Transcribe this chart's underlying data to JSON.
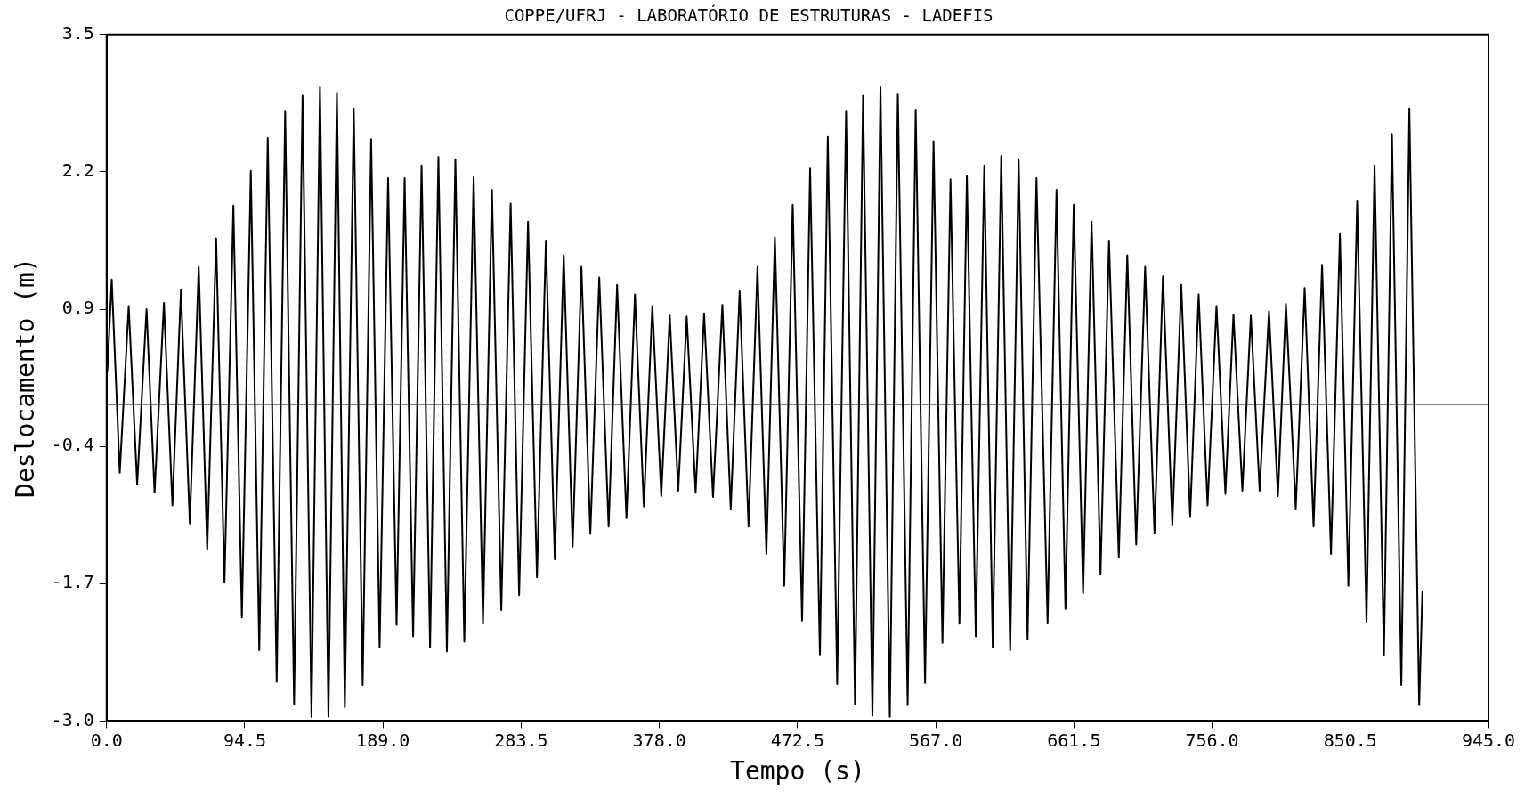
{
  "chart_data": {
    "type": "line",
    "title": "COPPE/UFRJ - LABORATÓRIO DE ESTRUTURAS - LADEFIS",
    "xlabel": "Tempo (s)",
    "ylabel": "Deslocamento (m)",
    "xlim": [
      0,
      945
    ],
    "ylim": [
      -3.0,
      3.5
    ],
    "xticks": [
      {
        "value": 0,
        "label": "0.0"
      },
      {
        "value": 94.5,
        "label": "94.5"
      },
      {
        "value": 189,
        "label": "189.0"
      },
      {
        "value": 283.5,
        "label": "283.5"
      },
      {
        "value": 378,
        "label": "378.0"
      },
      {
        "value": 472.5,
        "label": "472.5"
      },
      {
        "value": 567,
        "label": "567.0"
      },
      {
        "value": 661.5,
        "label": "661.5"
      },
      {
        "value": 756,
        "label": "756.0"
      },
      {
        "value": 850.5,
        "label": "850.5"
      },
      {
        "value": 945,
        "label": "945.0"
      }
    ],
    "yticks": [
      {
        "value": -3.0,
        "label": "-3.0"
      },
      {
        "value": -1.7,
        "label": "-1.7"
      },
      {
        "value": -0.4,
        "label": "-0.4"
      },
      {
        "value": 0.9,
        "label": "0.9"
      },
      {
        "value": 2.2,
        "label": "2.2"
      },
      {
        "value": 3.5,
        "label": "3.5"
      }
    ],
    "marker": "none",
    "line_style": "solid",
    "ref_lines": [
      {
        "axis": "y",
        "value": 0,
        "color": "#000000"
      }
    ],
    "series": [
      {
        "color": "#000000",
        "x": [
          0.5,
          3.5,
          9.0,
          15.1,
          20.9,
          27.3,
          32.8,
          39.2,
          45.0,
          50.8,
          56.9,
          63.0,
          68.8,
          74.9,
          80.6,
          86.7,
          92.5,
          98.6,
          104.4,
          110.2,
          116.3,
          122.1,
          128.2,
          134.0,
          140.1,
          145.9,
          151.7,
          157.5,
          162.9,
          169.0,
          175.1,
          180.9,
          186.7,
          192.5,
          198.3,
          203.8,
          209.6,
          215.4,
          221.2,
          226.9,
          232.7,
          238.5,
          244.6,
          251.0,
          257.4,
          263.5,
          269.9,
          276.3,
          282.1,
          288.2,
          294.3,
          300.4,
          306.5,
          312.6,
          318.7,
          324.7,
          330.8,
          336.9,
          343.3,
          349.1,
          355.5,
          361.3,
          367.4,
          373.2,
          379.3,
          385.1,
          390.9,
          396.7,
          402.8,
          408.6,
          414.7,
          421.1,
          426.8,
          432.9,
          439.0,
          445.1,
          451.2,
          457.0,
          463.4,
          469.2,
          475.6,
          481.1,
          487.8,
          493.2,
          499.6,
          505.7,
          511.8,
          517.3,
          523.7,
          529.2,
          535.6,
          541.1,
          547.8,
          553.3,
          559.7,
          565.5,
          571.6,
          577.1,
          583.2,
          588.3,
          594.4,
          600.2,
          606.0,
          611.8,
          617.9,
          623.7,
          629.8,
          635.9,
          643.5,
          649.6,
          655.7,
          661.4,
          667.8,
          673.6,
          679.7,
          685.5,
          692.2,
          698.0,
          704.1,
          710.2,
          716.6,
          722.4,
          728.8,
          734.9,
          741.0,
          746.8,
          752.9,
          759.0,
          765.1,
          770.6,
          776.7,
          782.5,
          788.5,
          794.9,
          801.0,
          806.5,
          813.2,
          819.3,
          825.4,
          831.2,
          837.3,
          843.4,
          849.2,
          855.2,
          861.6,
          867.1,
          873.5,
          879.0,
          885.4,
          890.9,
          897.6,
          899.8
        ],
        "values": [
          0.31,
          1.18,
          -0.65,
          0.93,
          -0.76,
          0.9,
          -0.84,
          0.96,
          -0.96,
          1.08,
          -1.13,
          1.3,
          -1.38,
          1.57,
          -1.69,
          1.88,
          -2.02,
          2.21,
          -2.33,
          2.52,
          -2.63,
          2.77,
          -2.84,
          2.92,
          -2.96,
          3.0,
          -2.96,
          2.95,
          -2.87,
          2.8,
          -2.66,
          2.51,
          -2.3,
          2.14,
          -2.09,
          2.14,
          -2.2,
          2.26,
          -2.3,
          2.34,
          -2.34,
          2.32,
          -2.25,
          2.15,
          -2.08,
          2.03,
          -1.95,
          1.9,
          -1.81,
          1.73,
          -1.64,
          1.55,
          -1.47,
          1.41,
          -1.35,
          1.3,
          -1.23,
          1.2,
          -1.16,
          1.13,
          -1.08,
          1.04,
          -0.97,
          0.93,
          -0.87,
          0.84,
          -0.82,
          0.83,
          -0.84,
          0.86,
          -0.88,
          0.94,
          -0.99,
          1.07,
          -1.16,
          1.3,
          -1.42,
          1.58,
          -1.72,
          1.89,
          -2.05,
          2.23,
          -2.37,
          2.53,
          -2.65,
          2.77,
          -2.84,
          2.92,
          -2.95,
          3.0,
          -2.96,
          2.94,
          -2.85,
          2.79,
          -2.64,
          2.49,
          -2.26,
          2.13,
          -2.08,
          2.16,
          -2.2,
          2.26,
          -2.3,
          2.35,
          -2.33,
          2.32,
          -2.23,
          2.14,
          -2.07,
          2.03,
          -1.94,
          1.89,
          -1.79,
          1.73,
          -1.61,
          1.55,
          -1.45,
          1.41,
          -1.33,
          1.3,
          -1.22,
          1.21,
          -1.14,
          1.13,
          -1.06,
          1.04,
          -0.96,
          0.93,
          -0.85,
          0.85,
          -0.82,
          0.84,
          -0.82,
          0.88,
          -0.87,
          0.95,
          -0.99,
          1.1,
          -1.16,
          1.32,
          -1.42,
          1.61,
          -1.72,
          1.92,
          -2.06,
          2.26,
          -2.38,
          2.56,
          -2.66,
          2.8,
          -2.85,
          -1.78
        ]
      }
    ]
  }
}
